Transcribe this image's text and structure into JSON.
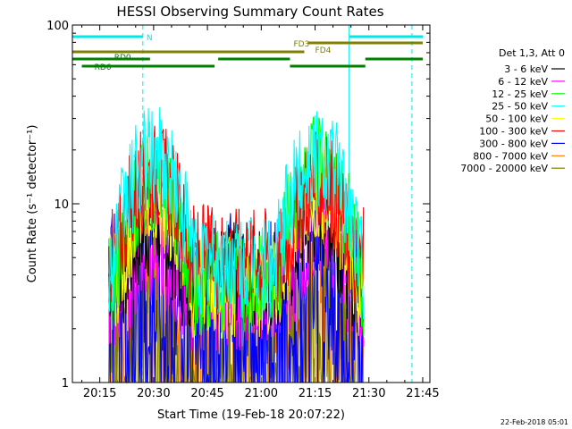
{
  "footer": {
    "date_stamp": "22-Feb-2018 05:01"
  },
  "colors": {
    "att_nighttime": "#00e8e8",
    "att_nighttime_dash": "#00e8e8",
    "fd_bars": "#808000",
    "rd_bars": "#008000"
  },
  "chart_data": {
    "type": "line",
    "title": "HESSI Observing Summary Count Rates",
    "xlabel": "Start Time (19-Feb-18 20:07:22)",
    "ylabel": "Count Rate (s⁻¹ detector⁻¹)",
    "y_scale": "log",
    "ylim": [
      1,
      100
    ],
    "xlim": [
      "20:07:22",
      "21:47:00"
    ],
    "x_ticks": [
      "20:15",
      "20:30",
      "20:45",
      "21:00",
      "21:15",
      "21:30",
      "21:45"
    ],
    "y_ticks": [
      "1",
      "10",
      "100"
    ],
    "legend_header": "Det 1,3, Att 0",
    "legend_placement": "right",
    "flag_lines": {
      "N": {
        "label": "N",
        "segments": [
          [
            "20:07:22",
            "20:27:00"
          ],
          [
            "21:24:30",
            "21:45:00"
          ]
        ],
        "dashed_x": [
          "20:27:00",
          "21:42:00"
        ],
        "solid_x": [
          "20:07:22",
          "21:24:30"
        ]
      },
      "FD": {
        "labels": [
          "FD3",
          "FD4"
        ],
        "segments_upper": [
          [
            "21:13:00",
            "21:45:00"
          ]
        ],
        "segments_lower": [
          [
            "20:07:22",
            "21:12:00"
          ]
        ]
      },
      "RD": {
        "labels": [
          "RD0",
          "RD6"
        ],
        "segments_upper": [
          [
            "20:07:22",
            "20:29:00"
          ],
          [
            "20:48:00",
            "21:08:00"
          ],
          [
            "21:29:00",
            "21:45:00"
          ]
        ],
        "segments_lower": [
          [
            "20:10:00",
            "20:47:00"
          ],
          [
            "21:08:00",
            "21:29:00"
          ]
        ]
      }
    },
    "series": [
      {
        "name": "3 - 6 keV",
        "color": "#000000",
        "peak1": 7.5,
        "peak2": 8.5,
        "trough": 4.0
      },
      {
        "name": "6 - 12 keV",
        "color": "#ff00ff",
        "peak1": 5.5,
        "peak2": 6.5,
        "trough": 3.0
      },
      {
        "name": "12 - 25 keV",
        "color": "#00ff00",
        "peak1": 13.0,
        "peak2": 16.0,
        "trough": 3.5
      },
      {
        "name": "25 - 50 keV",
        "color": "#00ffff",
        "peak1": 18.0,
        "peak2": 19.0,
        "trough": 4.5
      },
      {
        "name": "50 - 100 keV",
        "color": "#ffff00",
        "peak1": 11.0,
        "peak2": 12.0,
        "trough": 3.5
      },
      {
        "name": "100 - 300 keV",
        "color": "#ff0000",
        "peak1": 15.0,
        "peak2": 13.0,
        "trough": 5.0
      },
      {
        "name": "300 - 800 keV",
        "color": "#0000ff",
        "peak1": 4.5,
        "peak2": 4.0,
        "trough": 2.5
      },
      {
        "name": "800 - 7000 keV",
        "color": "#ff8000",
        "peak1": 3.5,
        "peak2": 3.2,
        "trough": 1.8
      },
      {
        "name": "7000 - 20000 keV",
        "color": "#808000",
        "peak1": 2.5,
        "peak2": 2.5,
        "trough": 1.5
      }
    ]
  }
}
